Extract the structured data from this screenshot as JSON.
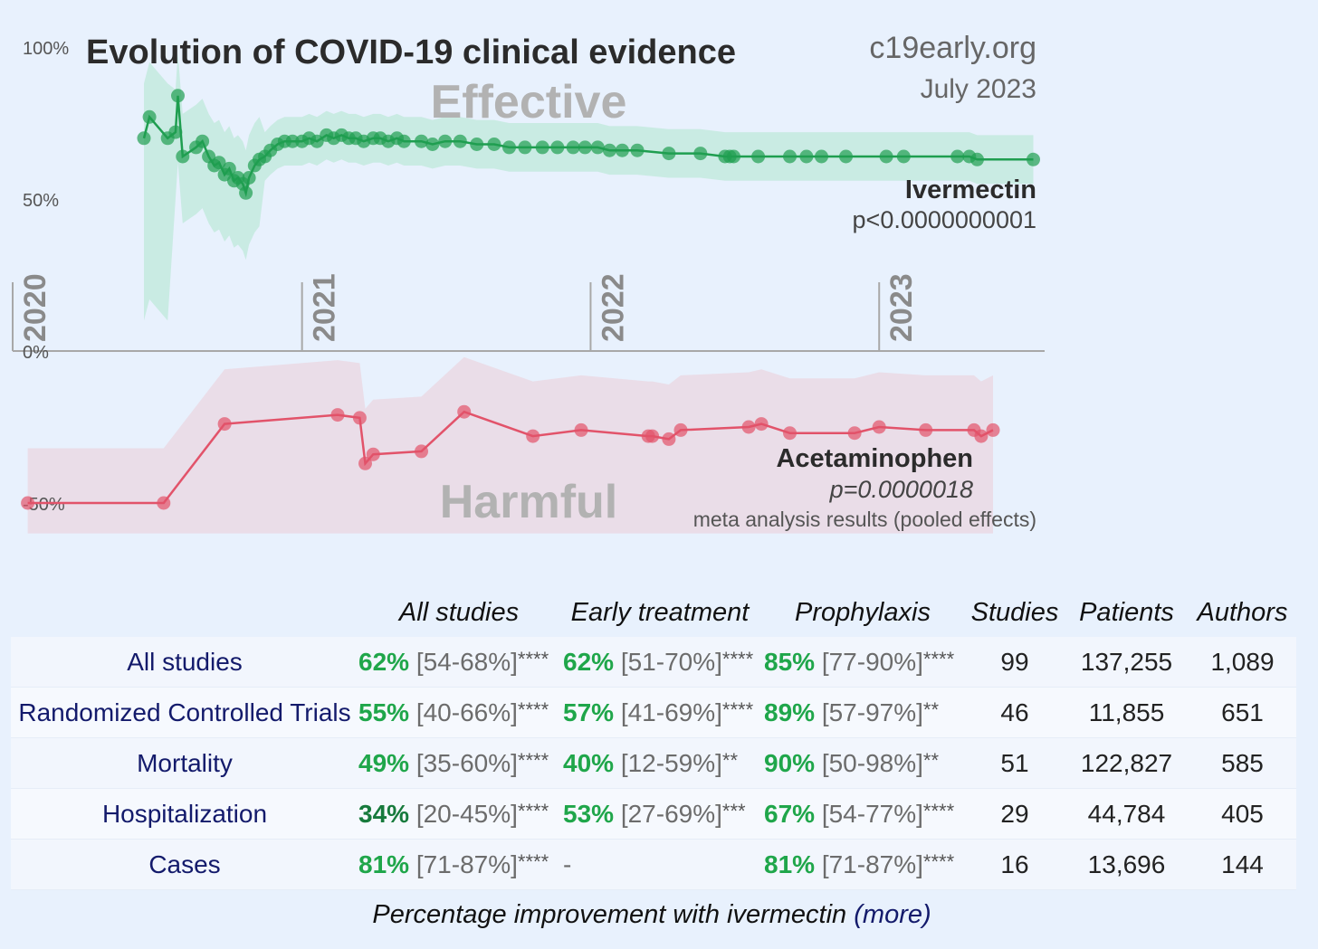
{
  "header": {
    "title": "Evolution of COVID-19 clinical evidence",
    "site": "c19early.org",
    "date": "July 2023"
  },
  "chart_data": {
    "type": "line",
    "y_axis": {
      "ticks": [
        "100%",
        "50%",
        "0%",
        "-50%"
      ],
      "tick_values": [
        100,
        50,
        0,
        -50
      ],
      "range": [
        -60,
        100
      ]
    },
    "x_axis": {
      "ticks": [
        "2020",
        "2021",
        "2022",
        "2023"
      ],
      "range": [
        "2020-01-01",
        "2023-07-15"
      ]
    },
    "region_labels": {
      "top": "Effective",
      "bottom": "Harmful"
    },
    "series": [
      {
        "name": "Ivermectin",
        "p_value": "p<0.0000000001",
        "color": "#1f9e50",
        "band_color": "#bfe8d9",
        "points": [
          [
            "2020-06-15",
            70
          ],
          [
            "2020-06-22",
            77
          ],
          [
            "2020-07-15",
            70
          ],
          [
            "2020-07-25",
            72
          ],
          [
            "2020-07-28",
            84
          ],
          [
            "2020-08-03",
            64
          ],
          [
            "2020-08-20",
            67
          ],
          [
            "2020-08-28",
            69
          ],
          [
            "2020-09-05",
            64
          ],
          [
            "2020-09-12",
            61
          ],
          [
            "2020-09-18",
            62
          ],
          [
            "2020-09-25",
            58
          ],
          [
            "2020-10-01",
            60
          ],
          [
            "2020-10-07",
            56
          ],
          [
            "2020-10-12",
            57
          ],
          [
            "2020-10-18",
            55
          ],
          [
            "2020-10-22",
            52
          ],
          [
            "2020-10-26",
            57
          ],
          [
            "2020-11-02",
            61
          ],
          [
            "2020-11-08",
            63
          ],
          [
            "2020-11-15",
            64
          ],
          [
            "2020-11-22",
            66
          ],
          [
            "2020-12-01",
            68
          ],
          [
            "2020-12-10",
            69
          ],
          [
            "2020-12-20",
            69
          ],
          [
            "2021-01-01",
            69
          ],
          [
            "2021-01-10",
            70
          ],
          [
            "2021-01-20",
            69
          ],
          [
            "2021-02-01",
            71
          ],
          [
            "2021-02-10",
            70
          ],
          [
            "2021-02-20",
            71
          ],
          [
            "2021-03-01",
            70
          ],
          [
            "2021-03-10",
            70
          ],
          [
            "2021-03-20",
            69
          ],
          [
            "2021-04-01",
            70
          ],
          [
            "2021-04-10",
            70
          ],
          [
            "2021-04-20",
            69
          ],
          [
            "2021-05-01",
            70
          ],
          [
            "2021-05-10",
            69
          ],
          [
            "2021-06-01",
            69
          ],
          [
            "2021-06-15",
            68
          ],
          [
            "2021-07-01",
            69
          ],
          [
            "2021-07-20",
            69
          ],
          [
            "2021-08-10",
            68
          ],
          [
            "2021-09-01",
            68
          ],
          [
            "2021-09-20",
            67
          ],
          [
            "2021-10-10",
            67
          ],
          [
            "2021-11-01",
            67
          ],
          [
            "2021-11-20",
            67
          ],
          [
            "2021-12-10",
            67
          ],
          [
            "2021-12-25",
            67
          ],
          [
            "2022-01-10",
            67
          ],
          [
            "2022-01-25",
            66
          ],
          [
            "2022-02-10",
            66
          ],
          [
            "2022-03-01",
            66
          ],
          [
            "2022-04-10",
            65
          ],
          [
            "2022-05-20",
            65
          ],
          [
            "2022-06-20",
            64
          ],
          [
            "2022-06-26",
            64
          ],
          [
            "2022-07-01",
            64
          ],
          [
            "2022-08-01",
            64
          ],
          [
            "2022-09-10",
            64
          ],
          [
            "2022-10-01",
            64
          ],
          [
            "2022-10-20",
            64
          ],
          [
            "2022-11-20",
            64
          ],
          [
            "2023-01-10",
            64
          ],
          [
            "2023-02-01",
            64
          ],
          [
            "2023-04-10",
            64
          ],
          [
            "2023-04-25",
            64
          ],
          [
            "2023-05-05",
            63
          ],
          [
            "2023-07-15",
            63
          ]
        ]
      },
      {
        "name": "Acetaminophen",
        "p_value": "p=0.0000018",
        "color": "#e2536a",
        "band_color": "#ead9e4",
        "points": [
          [
            "2020-01-20",
            -50
          ],
          [
            "2020-07-10",
            -50
          ],
          [
            "2020-09-25",
            -24
          ],
          [
            "2021-02-15",
            -21
          ],
          [
            "2021-03-15",
            -22
          ],
          [
            "2021-03-22",
            -37
          ],
          [
            "2021-04-01",
            -34
          ],
          [
            "2021-06-01",
            -33
          ],
          [
            "2021-07-25",
            -20
          ],
          [
            "2021-10-20",
            -28
          ],
          [
            "2021-12-20",
            -26
          ],
          [
            "2022-03-15",
            -28
          ],
          [
            "2022-03-20",
            -28
          ],
          [
            "2022-04-10",
            -29
          ],
          [
            "2022-04-25",
            -26
          ],
          [
            "2022-07-20",
            -25
          ],
          [
            "2022-08-05",
            -24
          ],
          [
            "2022-09-10",
            -27
          ],
          [
            "2022-12-01",
            -27
          ],
          [
            "2023-01-01",
            -25
          ],
          [
            "2023-03-01",
            -26
          ],
          [
            "2023-05-01",
            -26
          ],
          [
            "2023-05-10",
            -28
          ],
          [
            "2023-05-25",
            -26
          ]
        ]
      }
    ],
    "footnote": "meta analysis results (pooled effects)"
  },
  "table": {
    "columns": [
      "",
      "All studies",
      "Early treatment",
      "Prophylaxis",
      "Studies",
      "Patients",
      "Authors"
    ],
    "rows": [
      {
        "label": "All studies",
        "all": {
          "pct": "62%",
          "ci": "[54-68%]",
          "stars": "****"
        },
        "early": {
          "pct": "62%",
          "ci": "[51-70%]",
          "stars": "****"
        },
        "proph": {
          "pct": "85%",
          "ci": "[77-90%]",
          "stars": "****"
        },
        "studies": "99",
        "patients": "137,255",
        "authors": "1,089"
      },
      {
        "label": "Randomized Controlled Trials",
        "all": {
          "pct": "55%",
          "ci": "[40-66%]",
          "stars": "****"
        },
        "early": {
          "pct": "57%",
          "ci": "[41-69%]",
          "stars": "****"
        },
        "proph": {
          "pct": "89%",
          "ci": "[57-97%]",
          "stars": "**"
        },
        "studies": "46",
        "patients": "11,855",
        "authors": "651"
      },
      {
        "label": "Mortality",
        "all": {
          "pct": "49%",
          "ci": "[35-60%]",
          "stars": "****"
        },
        "early": {
          "pct": "40%",
          "ci": "[12-59%]",
          "stars": "**"
        },
        "proph": {
          "pct": "90%",
          "ci": "[50-98%]",
          "stars": "**"
        },
        "studies": "51",
        "patients": "122,827",
        "authors": "585"
      },
      {
        "label": "Hospitalization",
        "all": {
          "pct": "34%",
          "ci": "[20-45%]",
          "stars": "****"
        },
        "early": {
          "pct": "53%",
          "ci": "[27-69%]",
          "stars": "***"
        },
        "proph": {
          "pct": "67%",
          "ci": "[54-77%]",
          "stars": "****"
        },
        "studies": "29",
        "patients": "44,784",
        "authors": "405"
      },
      {
        "label": "Cases",
        "all": {
          "pct": "81%",
          "ci": "[71-87%]",
          "stars": "****"
        },
        "early": {
          "pct": "",
          "ci": "-",
          "stars": ""
        },
        "proph": {
          "pct": "81%",
          "ci": "[71-87%]",
          "stars": "****"
        },
        "studies": "16",
        "patients": "13,696",
        "authors": "144"
      }
    ]
  },
  "caption": {
    "text": "Percentage improvement with ivermectin",
    "link": "(more)"
  }
}
